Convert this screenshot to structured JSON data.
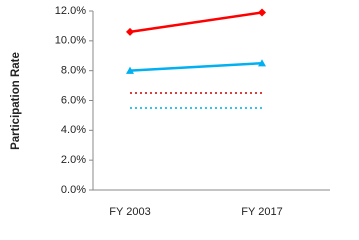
{
  "chart_data": {
    "type": "line",
    "y_label": "Participation Rate",
    "categories": [
      "FY 2003",
      "FY 2017"
    ],
    "series": [
      {
        "color": "#ff0000",
        "style": "solid",
        "marker": "diamond",
        "values": [
          10.6,
          11.9
        ]
      },
      {
        "color": "#00b0f0",
        "style": "solid",
        "marker": "triangle",
        "values": [
          8.0,
          8.5
        ]
      },
      {
        "color": "#e03c3c",
        "style": "dotted",
        "marker": null,
        "values": [
          6.5,
          6.5
        ]
      },
      {
        "color": "#33c3f0",
        "style": "dotted",
        "marker": null,
        "values": [
          5.5,
          5.5
        ]
      }
    ],
    "ylim": [
      0,
      12
    ],
    "yticks": [
      {
        "value": 0,
        "label": "0.0%"
      },
      {
        "value": 2,
        "label": "2.0%"
      },
      {
        "value": 4,
        "label": "4.0%"
      },
      {
        "value": 6,
        "label": "6.0%"
      },
      {
        "value": 8,
        "label": "8.0%"
      },
      {
        "value": 10,
        "label": "10.0%"
      },
      {
        "value": 12,
        "label": "12.0%"
      }
    ],
    "grid": false
  }
}
